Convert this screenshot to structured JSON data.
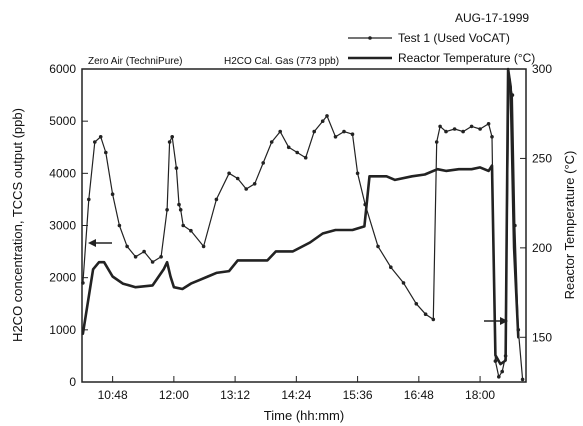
{
  "chart_data": {
    "type": "line",
    "date_label": "AUG-17-1999",
    "xlabel": "Time (hh:mm)",
    "ylabel_left": "H2CO concentration, TCCS output (ppb)",
    "ylabel_right": "Reactor Temperature (°C)",
    "x_ticks": [
      "10:48",
      "12:00",
      "13:12",
      "14:24",
      "15:36",
      "16:48",
      "18:00"
    ],
    "y_left_ticks": [
      "0",
      "1000",
      "2000",
      "3000",
      "4000",
      "5000",
      "6000"
    ],
    "y_right_ticks": [
      "150",
      "200",
      "250",
      "300"
    ],
    "xlim": [
      "10:12",
      "18:54"
    ],
    "ylim_left": [
      0,
      6000
    ],
    "ylim_right": [
      125,
      300
    ],
    "grid": false,
    "legend_position": "top-right",
    "annotations": {
      "zero_air": "Zero Air (TechniPure)",
      "cal_gas": "H2CO Cal. Gas (773 ppb)"
    },
    "series": [
      {
        "name": "Test 1 (Used VoCAT)",
        "axis": "left",
        "style": "line-with-markers",
        "color": "#222222",
        "x": [
          "10:13",
          "10:20",
          "10:27",
          "10:34",
          "10:40",
          "10:48",
          "10:56",
          "11:05",
          "11:15",
          "11:25",
          "11:35",
          "11:45",
          "11:52",
          "11:55",
          "11:58",
          "12:03",
          "12:06",
          "12:08",
          "12:11",
          "12:20",
          "12:35",
          "12:50",
          "13:05",
          "13:15",
          "13:25",
          "13:35",
          "13:45",
          "13:55",
          "14:05",
          "14:15",
          "14:25",
          "14:35",
          "14:45",
          "14:55",
          "15:00",
          "15:10",
          "15:20",
          "15:30",
          "15:36",
          "15:45",
          "16:00",
          "16:15",
          "16:30",
          "16:45",
          "16:56",
          "17:05",
          "17:09",
          "17:13",
          "17:20",
          "17:30",
          "17:40",
          "17:50",
          "18:00",
          "18:10",
          "18:14",
          "18:18",
          "18:22",
          "18:26",
          "18:30",
          "18:34",
          "18:38",
          "18:41",
          "18:45",
          "18:50"
        ],
        "values": [
          1900,
          3500,
          4600,
          4700,
          4400,
          3600,
          3000,
          2600,
          2400,
          2500,
          2300,
          2400,
          3300,
          4600,
          4700,
          4100,
          3400,
          3300,
          3000,
          2900,
          2600,
          3500,
          4000,
          3900,
          3700,
          3800,
          4200,
          4600,
          4800,
          4500,
          4400,
          4300,
          4800,
          5000,
          5100,
          4700,
          4800,
          4750,
          4000,
          3400,
          2600,
          2200,
          1900,
          1500,
          1300,
          1200,
          4600,
          4900,
          4800,
          4850,
          4800,
          4900,
          4850,
          4950,
          4700,
          400,
          100,
          200,
          500,
          5800,
          5500,
          3000,
          1000,
          50
        ]
      },
      {
        "name": "Reactor Temperature (°C)",
        "axis": "right",
        "style": "thick-line",
        "color": "#222222",
        "x": [
          "10:13",
          "10:25",
          "10:32",
          "10:38",
          "10:48",
          "11:00",
          "11:15",
          "11:35",
          "11:48",
          "11:52",
          "11:56",
          "12:00",
          "12:10",
          "12:20",
          "12:30",
          "12:40",
          "12:50",
          "13:05",
          "13:15",
          "13:30",
          "13:50",
          "14:00",
          "14:20",
          "14:40",
          "14:55",
          "15:10",
          "15:30",
          "15:44",
          "15:50",
          "16:00",
          "16:10",
          "16:20",
          "16:40",
          "16:55",
          "17:10",
          "17:20",
          "17:35",
          "17:50",
          "18:00",
          "18:10",
          "18:14",
          "18:18",
          "18:24",
          "18:30",
          "18:33",
          "18:36",
          "18:40",
          "18:45"
        ],
        "values": [
          152,
          188,
          192,
          192,
          184,
          180,
          178,
          179,
          188,
          192,
          184,
          178,
          177,
          180,
          182,
          184,
          186,
          187,
          193,
          193,
          193,
          198,
          198,
          203,
          208,
          210,
          210,
          212,
          240,
          240,
          240,
          238,
          240,
          241,
          244,
          243,
          244,
          244,
          245,
          243,
          246,
          140,
          135,
          137,
          300,
          290,
          200,
          150
        ]
      }
    ]
  }
}
